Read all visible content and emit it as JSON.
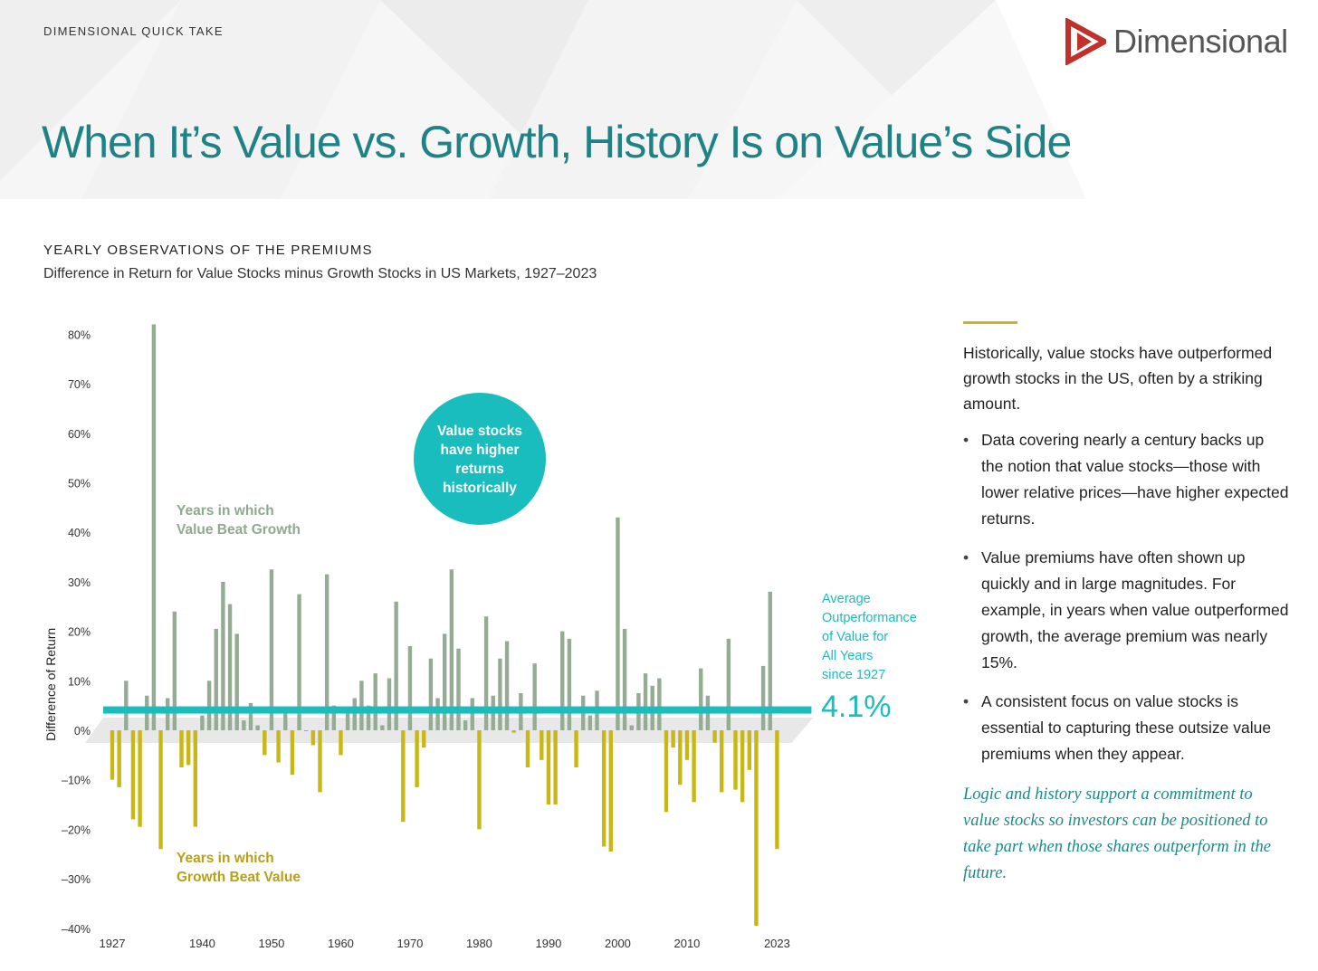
{
  "header": {
    "eyebrow": "DIMENSIONAL QUICK TAKE",
    "brand": "Dimensional",
    "title": "When It’s Value vs. Growth, History Is on Value’s Side"
  },
  "section": {
    "eyebrow": "YEARLY OBSERVATIONS OF THE PREMIUMS",
    "caption": "Difference in Return for Value Stocks minus Growth Stocks in US Markets, 1927–2023"
  },
  "colors": {
    "accent": "#1f8287",
    "teal": "#19bdbd",
    "value_bar": "#95ab94",
    "growth_bar": "#c9b715",
    "value_label": "#8fa88e",
    "growth_label": "#b7a116"
  },
  "chart_data": {
    "type": "bar",
    "title": "Difference in Return for Value Stocks minus Growth Stocks in US Markets, 1927–2023",
    "ylabel": "Difference of Return",
    "xlabel": "",
    "ylim": [
      -40,
      80
    ],
    "yticks": [
      80,
      70,
      60,
      50,
      40,
      30,
      20,
      10,
      0,
      -10,
      -20,
      -30,
      -40
    ],
    "ytick_labels": [
      "80%",
      "70%",
      "60%",
      "50%",
      "40%",
      "30%",
      "20%",
      "10%",
      "0%",
      "–10%",
      "–20%",
      "–30%",
      "–40%"
    ],
    "xticks": [
      1927,
      1940,
      1950,
      1960,
      1970,
      1980,
      1990,
      2000,
      2010,
      2023
    ],
    "start_year": 1927,
    "end_year": 2023,
    "values": [
      -10,
      -11.5,
      10,
      -18,
      -19.5,
      7,
      82,
      -24,
      6.5,
      24,
      -7.5,
      -7,
      -19.5,
      3,
      10,
      20.5,
      30,
      25.5,
      19.5,
      2,
      5.5,
      1,
      -5,
      32.5,
      -6.5,
      4,
      -9,
      27.5,
      0,
      -3,
      -12.5,
      31.5,
      5,
      -5,
      3.5,
      6.5,
      10,
      5,
      11.5,
      1,
      10.5,
      26,
      -18.5,
      17,
      -11.5,
      -3.5,
      14.5,
      6.5,
      19.5,
      32.5,
      16.5,
      2,
      6.5,
      -20,
      23,
      7,
      14.5,
      18,
      -0.5,
      7.5,
      -7.5,
      13.5,
      -6,
      -15,
      -15,
      20,
      18.5,
      -7.5,
      7,
      3,
      8,
      -23.5,
      -24.5,
      43,
      20.5,
      1,
      7.5,
      11.5,
      9,
      10.5,
      -16.5,
      -3.5,
      -11,
      -6,
      -14.5,
      12.5,
      7,
      -2.5,
      -12.5,
      18.5,
      -12,
      -14.5,
      -8,
      -39.5,
      13,
      28,
      -24
    ],
    "legend": {
      "positive": "Years in which Value Beat Growth",
      "negative": "Years in which Growth Beat Value"
    },
    "average": {
      "value": 4.1,
      "label_lines": [
        "Average",
        "Outperformance",
        "of Value for",
        "All Years",
        "since 1927"
      ],
      "value_label": "4.1%"
    },
    "callout": {
      "lines": [
        "Value stocks",
        "have higher",
        "returns",
        "historically"
      ]
    },
    "annotations": {
      "positive_lines": [
        "Years in which",
        "Value Beat Growth"
      ],
      "negative_lines": [
        "Years in which",
        "Growth Beat Value"
      ]
    }
  },
  "sidebar": {
    "intro": "Historically, value stocks have outperformed growth stocks in the US, often by a striking amount.",
    "bullets": [
      "Data covering nearly a century backs up the notion that value stocks—those with lower relative prices—have higher expected returns.",
      "Value premiums have often shown up quickly and in large magnitudes. For example, in years when value outperformed growth, the average premium was nearly 15%.",
      "A consistent focus on value stocks is essential to capturing these outsize value premiums when they appear."
    ],
    "quote": "Logic and history support a commitment to value stocks so investors can be positioned to take part when those shares outperform in the future."
  }
}
